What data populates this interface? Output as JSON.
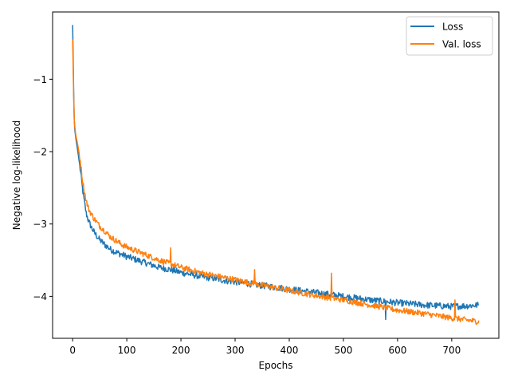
{
  "chart_data": {
    "type": "line",
    "title": "",
    "xlabel": "Epochs",
    "ylabel": "Negative log-likelihood",
    "xlim": [
      -37,
      787
    ],
    "ylim": [
      -4.58,
      -0.07
    ],
    "xticks": [
      0,
      100,
      200,
      300,
      400,
      500,
      600,
      700
    ],
    "yticks": [
      -4,
      -3,
      -2,
      -1
    ],
    "ytick_labels": [
      "−4",
      "−3",
      "−2",
      "−1"
    ],
    "xtick_labels": [
      "0",
      "100",
      "200",
      "300",
      "400",
      "500",
      "600",
      "700"
    ],
    "grid": false,
    "legend": {
      "position": "top-right"
    },
    "noise_note_key": "noise",
    "series": [
      {
        "name": "Loss",
        "color": "#1f77b4",
        "noise": 0.045,
        "x": [
          0,
          1,
          2,
          3,
          4,
          5,
          6,
          8,
          10,
          12,
          15,
          18,
          21,
          25,
          30,
          35,
          40,
          45,
          50,
          60,
          70,
          80,
          90,
          100,
          120,
          140,
          160,
          180,
          200,
          220,
          240,
          260,
          280,
          300,
          330,
          360,
          400,
          450,
          500,
          550,
          600,
          650,
          700,
          730,
          750
        ],
        "y": [
          -0.25,
          -0.7,
          -1.2,
          -1.55,
          -1.7,
          -1.76,
          -1.82,
          -1.92,
          -2.02,
          -2.13,
          -2.3,
          -2.5,
          -2.66,
          -2.85,
          -2.97,
          -3.05,
          -3.12,
          -3.17,
          -3.22,
          -3.29,
          -3.35,
          -3.39,
          -3.42,
          -3.45,
          -3.5,
          -3.55,
          -3.6,
          -3.63,
          -3.67,
          -3.7,
          -3.73,
          -3.75,
          -3.78,
          -3.8,
          -3.83,
          -3.86,
          -3.9,
          -3.95,
          -4.0,
          -4.05,
          -4.09,
          -4.12,
          -4.14,
          -4.13,
          -4.12
        ]
      },
      {
        "name": "Val. loss",
        "color": "#ff7f0e",
        "noise": 0.04,
        "x": [
          0,
          1,
          2,
          3,
          4,
          5,
          6,
          8,
          10,
          12,
          15,
          18,
          21,
          25,
          30,
          35,
          40,
          45,
          50,
          60,
          70,
          80,
          90,
          100,
          120,
          140,
          160,
          180,
          200,
          220,
          240,
          260,
          280,
          300,
          330,
          360,
          400,
          450,
          500,
          550,
          600,
          650,
          700,
          730,
          750
        ],
        "y": [
          -0.45,
          -0.85,
          -1.25,
          -1.55,
          -1.65,
          -1.72,
          -1.78,
          -1.85,
          -1.93,
          -2.02,
          -2.18,
          -2.38,
          -2.52,
          -2.68,
          -2.8,
          -2.87,
          -2.93,
          -2.98,
          -3.03,
          -3.1,
          -3.18,
          -3.23,
          -3.28,
          -3.32,
          -3.38,
          -3.44,
          -3.5,
          -3.55,
          -3.6,
          -3.64,
          -3.68,
          -3.71,
          -3.74,
          -3.77,
          -3.82,
          -3.86,
          -3.92,
          -3.99,
          -4.05,
          -4.12,
          -4.19,
          -4.24,
          -4.3,
          -4.33,
          -4.35
        ]
      }
    ],
    "spikes": [
      {
        "series": 1,
        "x": 181,
        "y": -3.33
      },
      {
        "series": 1,
        "x": 336,
        "y": -3.63
      },
      {
        "series": 1,
        "x": 478,
        "y": -3.68
      },
      {
        "series": 0,
        "x": 578,
        "y": -4.32
      },
      {
        "series": 1,
        "x": 706,
        "y": -4.05
      }
    ]
  }
}
